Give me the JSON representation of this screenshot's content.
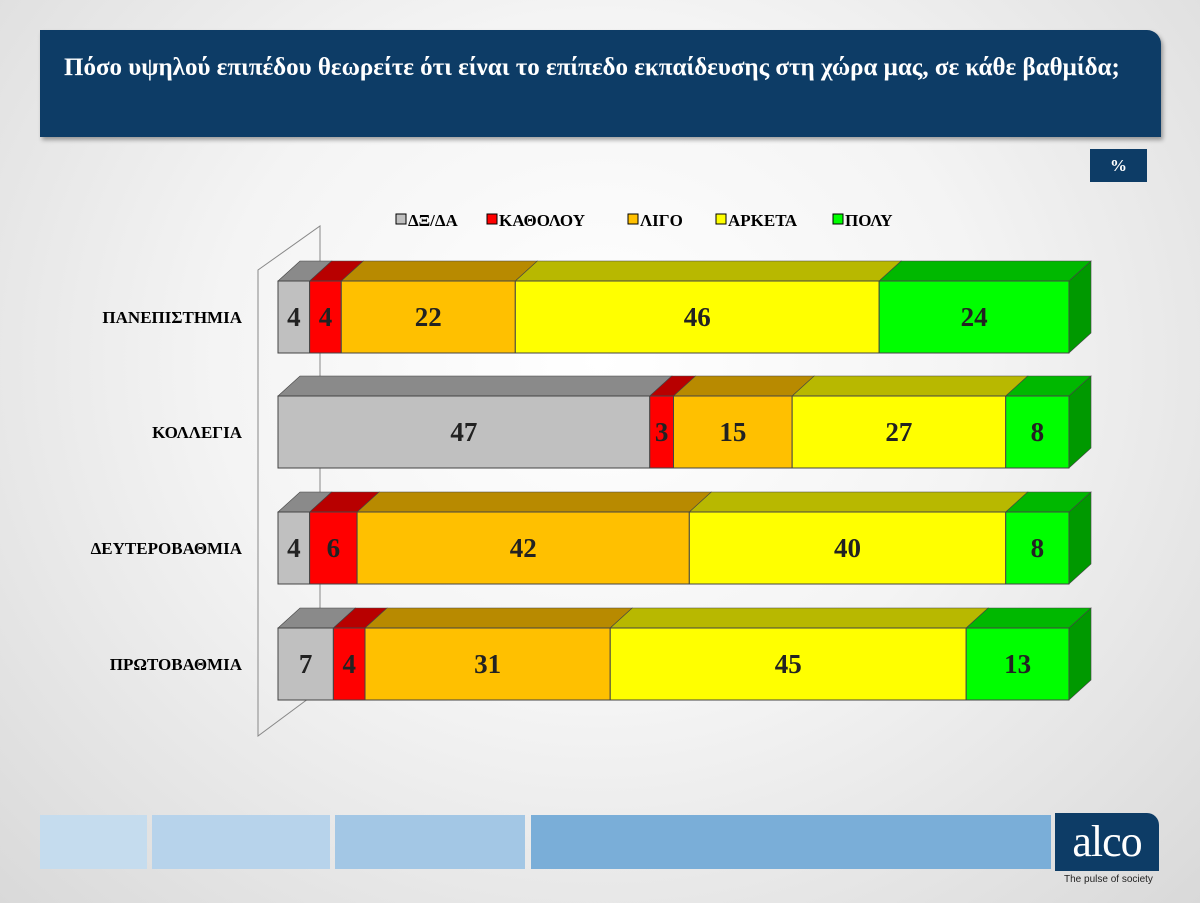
{
  "header": {
    "title": "Πόσο υψηλού επιπέδου θεωρείτε ότι είναι το επίπεδο εκπαίδευσης στη χώρα μας, σε κάθε βαθμίδα;"
  },
  "unit_badge": "%",
  "brand": {
    "logo": "alco",
    "tagline": "The pulse of society"
  },
  "chart_data": {
    "type": "bar",
    "orientation": "horizontal",
    "stacked": true,
    "normalized_100": true,
    "categories": [
      "ΠΑΝΕΠΙΣΤΗΜΙΑ",
      "ΚΟΛΛΕΓΙΑ",
      "ΔΕΥΤΕΡΟΒΑΘΜΙΑ",
      "ΠΡΩΤΟΒΑΘΜΙΑ"
    ],
    "series": [
      {
        "name": "ΔΞ/ΔΑ",
        "color": "#c0c0c0",
        "values": [
          4,
          47,
          4,
          7
        ]
      },
      {
        "name": "ΚΑΘΟΛΟΥ",
        "color": "#ff0000",
        "values": [
          4,
          3,
          6,
          4
        ]
      },
      {
        "name": "ΛΙΓΟ",
        "color": "#ffc000",
        "values": [
          22,
          15,
          42,
          31
        ]
      },
      {
        "name": "ΑΡΚΕΤΑ",
        "color": "#ffff00",
        "values": [
          46,
          27,
          40,
          45
        ]
      },
      {
        "name": "ΠΟΛΥ",
        "color": "#00ff00",
        "values": [
          24,
          8,
          8,
          13
        ]
      }
    ],
    "legend_position": "top",
    "grid": false
  },
  "footer": {
    "colors": [
      "#c5dcee",
      "#b7d3eb",
      "#a3c7e5",
      "#7aaed8"
    ]
  }
}
